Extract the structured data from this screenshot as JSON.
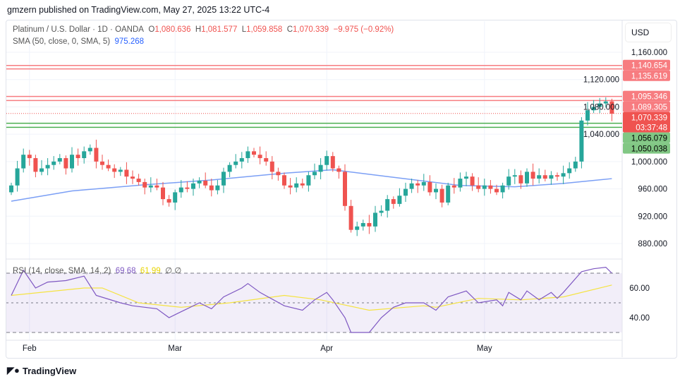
{
  "header": {
    "published": "gmzern published on TradingView.com, May 27, 2025 13:22 UTC-4"
  },
  "legend": {
    "symbol": "Platinum / U.S. Dollar · 1D · OANDA",
    "o_label": "O",
    "o": "1,080.636",
    "h_label": "H",
    "h": "1,081.577",
    "l_label": "L",
    "l": "1,059.858",
    "c_label": "C",
    "c": "1,070.339",
    "change": "−9.975 (−0.92%)",
    "sma_label": "SMA (50, close, 0, SMA, 5)",
    "sma_value": "975.268",
    "rsi_label": "RSI (14, close, SMA, 14, 2)",
    "rsi_value": "69.68",
    "rsi_signal": "61.99",
    "rsi_extra": "∅ ∅"
  },
  "axis": {
    "currency": "USD",
    "countdown": "03:37:48"
  },
  "footer": {
    "brand": "TradingView"
  },
  "colors": {
    "up": "#26a69a",
    "down": "#ef5350",
    "sma": "#7b9ff5",
    "rsi": "#7e57c2",
    "signal": "#f5e342",
    "resistance": "#f77c80",
    "support": "#4caf50"
  },
  "chart_data": {
    "type": "candlestick",
    "title": "Platinum / U.S. Dollar · 1D · OANDA",
    "ylim": [
      860,
      1165
    ],
    "yticks": [
      880,
      920,
      960,
      1000,
      1040,
      1080,
      1120,
      1160
    ],
    "ytick_labels": [
      "880.000",
      "920.000",
      "960.000",
      "1,000.000",
      "1,040.000",
      "1,080.000",
      "1,120.000",
      "1,160.000"
    ],
    "xticks": [
      {
        "label": "Feb",
        "index": 3
      },
      {
        "label": "Mar",
        "index": 27
      },
      {
        "label": "Apr",
        "index": 52
      },
      {
        "label": "May",
        "index": 78
      }
    ],
    "closes": [
      965,
      990,
      1010,
      1005,
      985,
      990,
      995,
      1000,
      1005,
      990,
      1010,
      1005,
      1015,
      1020,
      1000,
      995,
      990,
      985,
      988,
      978,
      975,
      970,
      962,
      965,
      962,
      945,
      940,
      955,
      962,
      960,
      968,
      972,
      965,
      958,
      965,
      985,
      995,
      1000,
      1005,
      1015,
      1010,
      1005,
      1000,
      985,
      980,
      965,
      962,
      968,
      965,
      980,
      985,
      995,
      1008,
      990,
      985,
      935,
      900,
      905,
      910,
      905,
      925,
      928,
      945,
      938,
      950,
      960,
      968,
      965,
      970,
      955,
      960,
      940,
      965,
      962,
      975,
      978,
      965,
      960,
      965,
      960,
      955,
      965,
      978,
      980,
      968,
      985,
      975,
      980,
      975,
      980,
      978,
      983,
      990,
      1000,
      1060,
      1075,
      1080,
      1085,
      1088,
      1070
    ],
    "first_open": 955,
    "sma50": [
      [
        0,
        942
      ],
      [
        10,
        957
      ],
      [
        22,
        966
      ],
      [
        33,
        973
      ],
      [
        45,
        983
      ],
      [
        53,
        988
      ],
      [
        62,
        978
      ],
      [
        74,
        965
      ],
      [
        83,
        963
      ],
      [
        91,
        968
      ],
      [
        99,
        975
      ]
    ],
    "levels": [
      {
        "value": 1140.654,
        "label": "1,140.654",
        "kind": "resistance"
      },
      {
        "value": 1135.619,
        "label": "1,135.619",
        "kind": "resistance"
      },
      {
        "value": 1095.346,
        "label": "1,095.346",
        "kind": "resistance"
      },
      {
        "value": 1089.305,
        "label": "1,089.305",
        "kind": "resistance"
      },
      {
        "value": 1056.079,
        "label": "1,056.079",
        "kind": "support"
      },
      {
        "value": 1050.038,
        "label": "1,050.038",
        "kind": "support"
      }
    ],
    "last_price": {
      "value": 1070.339,
      "label": "1,070.339"
    },
    "rsi": {
      "ylim": [
        25,
        80
      ],
      "bands": [
        30,
        50,
        70
      ],
      "yticks": [
        40,
        60
      ],
      "ytick_labels": [
        "40.00",
        "60.00"
      ],
      "values": [
        [
          0,
          55
        ],
        [
          2,
          72
        ],
        [
          4,
          60
        ],
        [
          6,
          64
        ],
        [
          9,
          65
        ],
        [
          12,
          68
        ],
        [
          14,
          55
        ],
        [
          18,
          50
        ],
        [
          20,
          48
        ],
        [
          24,
          46
        ],
        [
          26,
          40
        ],
        [
          29,
          46
        ],
        [
          31,
          50
        ],
        [
          33,
          46
        ],
        [
          35,
          54
        ],
        [
          38,
          60
        ],
        [
          39,
          63
        ],
        [
          41,
          57
        ],
        [
          45,
          48
        ],
        [
          48,
          45
        ],
        [
          50,
          52
        ],
        [
          52,
          57
        ],
        [
          53,
          52
        ],
        [
          55,
          40
        ],
        [
          56,
          30
        ],
        [
          59,
          30
        ],
        [
          61,
          40
        ],
        [
          63,
          47
        ],
        [
          65,
          50
        ],
        [
          68,
          50
        ],
        [
          70,
          45
        ],
        [
          72,
          54
        ],
        [
          75,
          58
        ],
        [
          77,
          50
        ],
        [
          80,
          52
        ],
        [
          81,
          48
        ],
        [
          82,
          57
        ],
        [
          84,
          52
        ],
        [
          85,
          58
        ],
        [
          87,
          52
        ],
        [
          89,
          57
        ],
        [
          90,
          53
        ],
        [
          91,
          57
        ],
        [
          94,
          71
        ],
        [
          96,
          73
        ],
        [
          98,
          74
        ],
        [
          99,
          70
        ]
      ],
      "signal": [
        [
          0,
          55
        ],
        [
          12,
          60
        ],
        [
          15,
          60
        ],
        [
          21,
          50
        ],
        [
          28,
          47
        ],
        [
          36,
          50
        ],
        [
          45,
          55
        ],
        [
          51,
          52
        ],
        [
          59,
          45
        ],
        [
          68,
          48
        ],
        [
          70,
          47
        ],
        [
          77,
          53
        ],
        [
          84,
          52
        ],
        [
          91,
          54
        ],
        [
          99,
          62
        ]
      ]
    }
  }
}
